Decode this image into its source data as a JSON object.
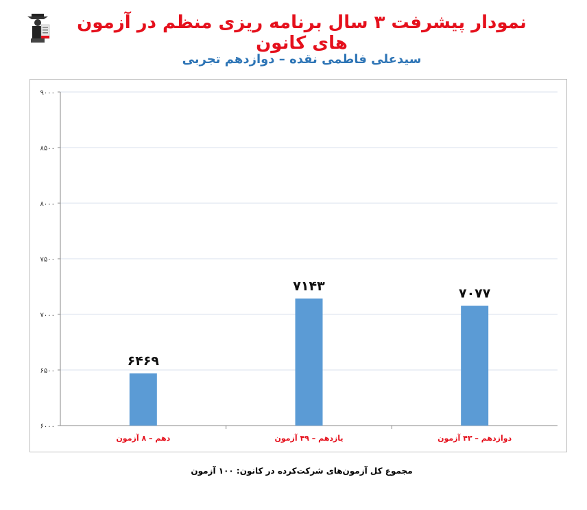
{
  "header": {
    "title": "نمودار پیشرفت ۳ سال برنامه ریزی منظم در آزمون های کانون",
    "subtitle": "سیدعلی فاطمی نقده – دوازدهم تجربی",
    "logo_icon": "kanoon-logo-icon"
  },
  "colors": {
    "title": "#e5101c",
    "subtitle": "#2e75b6",
    "bar": "#5b9bd5",
    "category_label": "#e5101c",
    "gridline": "#d9e2ec"
  },
  "chart_data": {
    "type": "bar",
    "categories": [
      "دهم – ۸ آزمون",
      "یازدهم – ۴۹ آزمون",
      "دوازدهم – ۴۳ آزمون"
    ],
    "values": [
      6469,
      7143,
      7077
    ],
    "value_labels": [
      "۶۴۶۹",
      "۷۱۴۳",
      "۷۰۷۷"
    ],
    "ylim": [
      6000,
      9000
    ],
    "yticks": [
      6000,
      6500,
      7000,
      7500,
      8000,
      8500,
      9000
    ],
    "ytick_labels": [
      "۶۰۰۰",
      "۶۵۰۰",
      "۷۰۰۰",
      "۷۵۰۰",
      "۸۰۰۰",
      "۸۵۰۰",
      "۹۰۰۰"
    ],
    "grid": true,
    "legend": "none"
  },
  "footer": {
    "note": "مجموع کل آزمون‌های شرکت‌کرده در کانون:  ۱۰۰ آزمون"
  }
}
